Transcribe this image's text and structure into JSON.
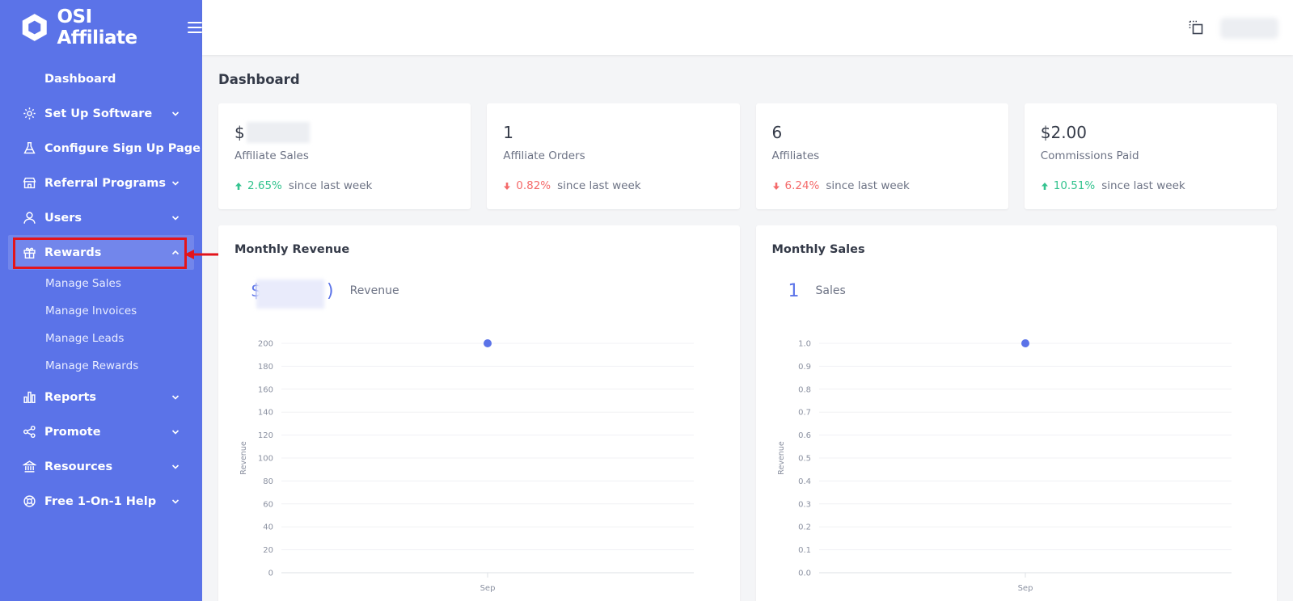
{
  "brand": {
    "name": "OSI Affiliate",
    "logo_icon": "hexagon-logo-icon",
    "menu_icon": "hamburger-icon"
  },
  "sidebar": {
    "items": [
      {
        "label": "Dashboard",
        "icon": ""
      },
      {
        "label": "Set Up Software",
        "icon": "gear-icon"
      },
      {
        "label": "Configure Sign Up Page",
        "icon": "flask-icon"
      },
      {
        "label": "Referral Programs",
        "icon": "store-icon"
      },
      {
        "label": "Users",
        "icon": "user-icon"
      },
      {
        "label": "Rewards",
        "icon": "gift-icon"
      },
      {
        "label": "Reports",
        "icon": "bar-chart-icon"
      },
      {
        "label": "Promote",
        "icon": "share-icon"
      },
      {
        "label": "Resources",
        "icon": "bank-icon"
      },
      {
        "label": "Free 1-On-1 Help",
        "icon": "lifebuoy-icon"
      }
    ],
    "rewards_submenu": [
      "Manage Sales",
      "Manage Invoices",
      "Manage Leads",
      "Manage Rewards"
    ]
  },
  "topbar": {
    "fullscreen_icon": "fullscreen-icon"
  },
  "page": {
    "title": "Dashboard"
  },
  "stats": [
    {
      "value": "$",
      "label": "Affiliate Sales",
      "trend": "up",
      "pct": "2.65%",
      "suffix": "since last week"
    },
    {
      "value": "1",
      "label": "Affiliate Orders",
      "trend": "down",
      "pct": "0.82%",
      "suffix": "since last week"
    },
    {
      "value": "6",
      "label": "Affiliates",
      "trend": "down",
      "pct": "6.24%",
      "suffix": "since last week"
    },
    {
      "value": "$2.00",
      "label": "Commissions Paid",
      "trend": "up",
      "pct": "10.51%",
      "suffix": "since last week"
    }
  ],
  "colors": {
    "sidebar": "#5b73e8",
    "accent": "#5b73e8",
    "up": "#34c38f",
    "down": "#f46a6a",
    "highlight": "#e3141b"
  },
  "charts": [
    {
      "title": "Monthly Revenue",
      "summary_value": "$",
      "summary_value_tail": ")",
      "summary_label": "Revenue"
    },
    {
      "title": "Monthly Sales",
      "summary_value": "1",
      "summary_label": "Sales"
    }
  ],
  "chart_data": [
    {
      "type": "scatter",
      "title": "",
      "xlabel": "",
      "ylabel": "Revenue",
      "categories": [
        "Sep"
      ],
      "values": [
        200
      ],
      "ylim": [
        0,
        200
      ],
      "yticks": [
        0,
        20,
        40,
        60,
        80,
        100,
        120,
        140,
        160,
        180,
        200
      ],
      "ytick_labels": [
        "0",
        "20",
        "40",
        "60",
        "80",
        "100",
        "120",
        "140",
        "160",
        "180",
        "200"
      ],
      "grid": true,
      "color": "#5b73e8"
    },
    {
      "type": "scatter",
      "title": "",
      "xlabel": "",
      "ylabel": "Revenue",
      "categories": [
        "Sep"
      ],
      "values": [
        1.0
      ],
      "ylim": [
        0,
        1.0
      ],
      "yticks": [
        0,
        0.1,
        0.2,
        0.3,
        0.4,
        0.5,
        0.6,
        0.7,
        0.8,
        0.9,
        1.0
      ],
      "ytick_labels": [
        "0.0",
        "0.1",
        "0.2",
        "0.3",
        "0.4",
        "0.5",
        "0.6",
        "0.7",
        "0.8",
        "0.9",
        "1.0"
      ],
      "grid": true,
      "color": "#5b73e8"
    }
  ]
}
